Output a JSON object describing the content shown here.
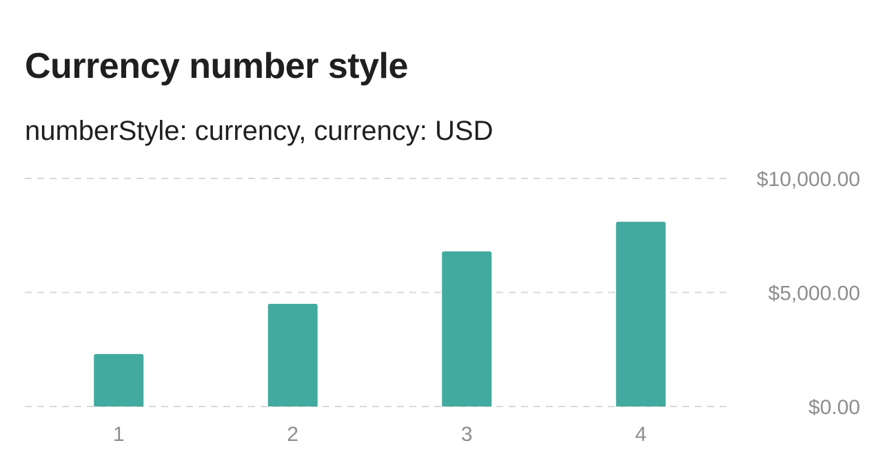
{
  "title": "Currency number style",
  "subtitle": "numberStyle: currency, currency: USD",
  "colors": {
    "bar": "#43aa9f",
    "grid": "#d9d9d9",
    "axis_text": "#8e8e8e",
    "title_text": "#1f1f1f"
  },
  "chart_data": {
    "type": "bar",
    "title": "Currency number style",
    "subtitle": "numberStyle: currency, currency: USD",
    "categories": [
      "1",
      "2",
      "3",
      "4"
    ],
    "values": [
      2300,
      4500,
      6800,
      8100
    ],
    "ylim": [
      0,
      10000
    ],
    "y_ticks": [
      {
        "value": 0,
        "label": "$0.00"
      },
      {
        "value": 5000,
        "label": "$5,000.00"
      },
      {
        "value": 10000,
        "label": "$10,000.00"
      }
    ],
    "y_axis_position": "right",
    "grid": true,
    "legend": "none"
  }
}
